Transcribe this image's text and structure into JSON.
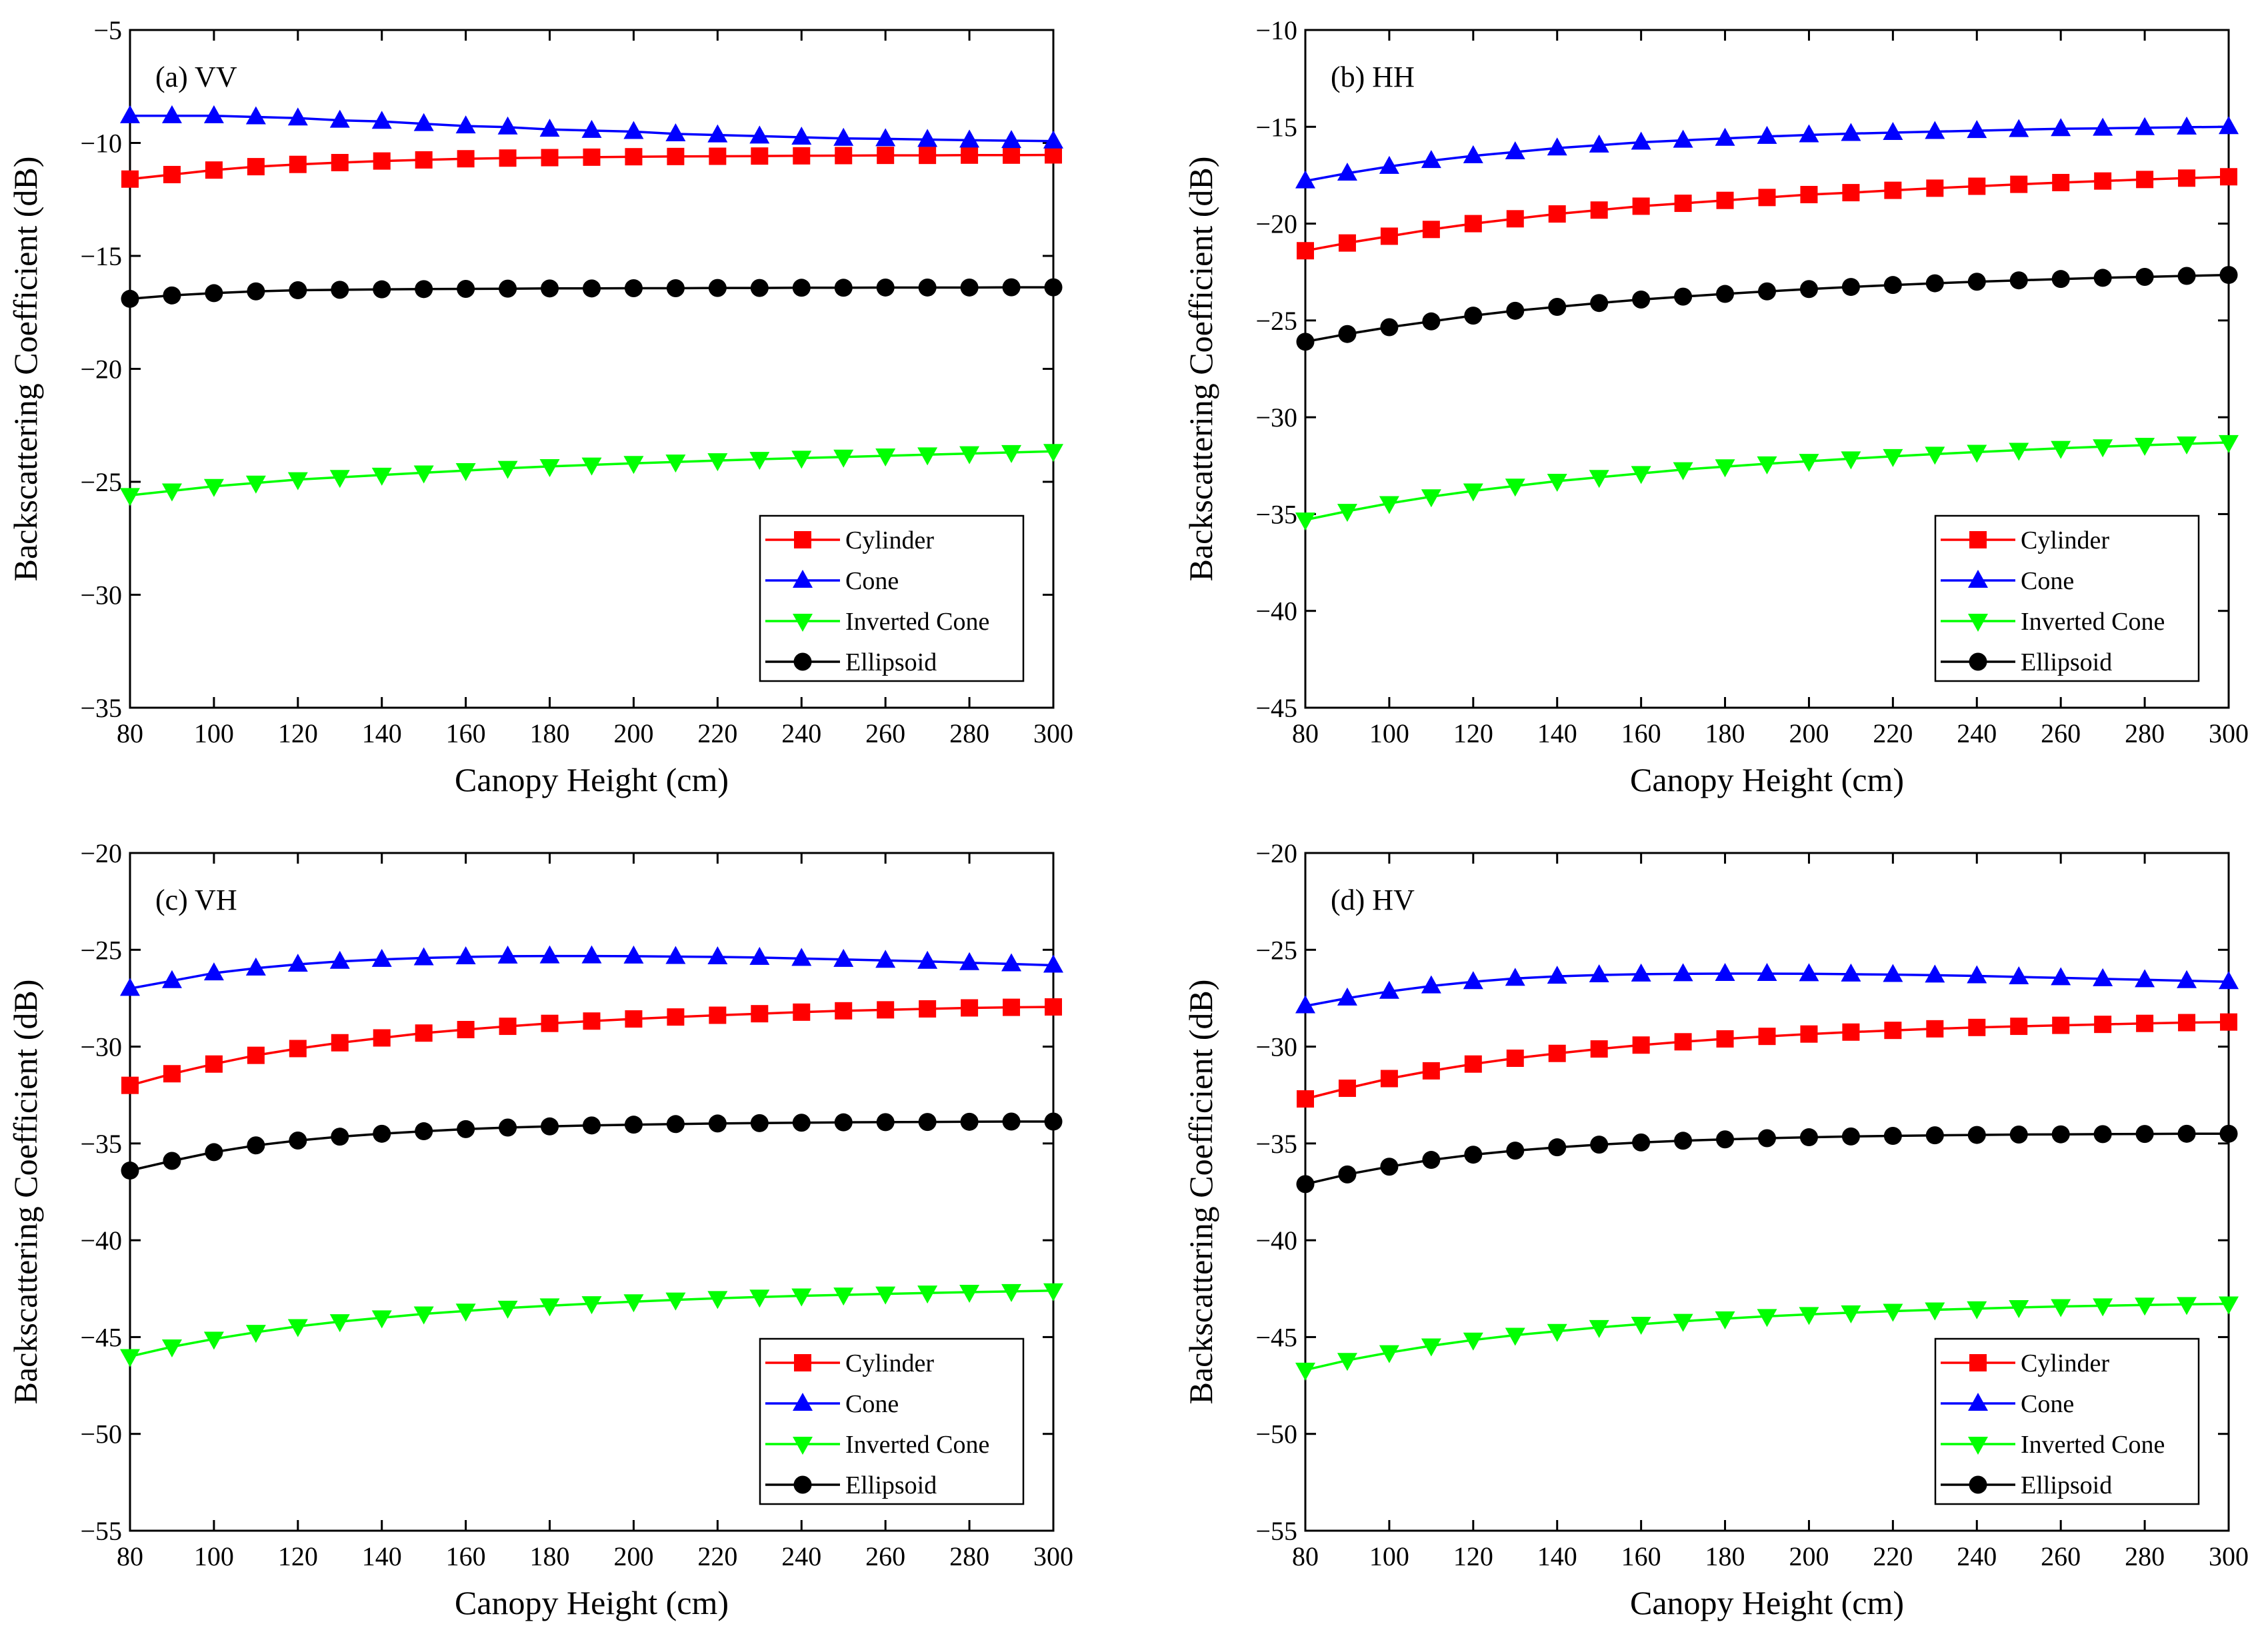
{
  "figure": {
    "xlabel": "Canopy Height (cm)",
    "ylabel": "Backscattering Coefficient (dB)"
  },
  "chart_data": [
    {
      "type": "line",
      "panel_label": "(a) VV",
      "xlabel": "Canopy Height (cm)",
      "ylabel": "Backscattering Coefficient (dB)",
      "xlim": [
        80,
        300
      ],
      "ylim": [
        -35,
        -5
      ],
      "xticks": [
        "80",
        "100",
        "120",
        "140",
        "160",
        "180",
        "200",
        "220",
        "240",
        "260",
        "280",
        "300"
      ],
      "yticks": [
        "−35",
        "−30",
        "−25",
        "−20",
        "−15",
        "−10",
        "−5"
      ],
      "grid": false,
      "legend_position": "bottom-right",
      "x": [
        80,
        90,
        100,
        110,
        120,
        130,
        140,
        150,
        160,
        170,
        180,
        190,
        200,
        210,
        220,
        230,
        240,
        250,
        260,
        270,
        280,
        290,
        300
      ],
      "series": [
        {
          "name": "Cylinder",
          "color": "#ff0000",
          "marker": "square",
          "values": [
            -11.6,
            -11.4,
            -11.2,
            -11.05,
            -10.95,
            -10.87,
            -10.8,
            -10.75,
            -10.7,
            -10.67,
            -10.65,
            -10.63,
            -10.61,
            -10.6,
            -10.59,
            -10.58,
            -10.57,
            -10.56,
            -10.55,
            -10.55,
            -10.54,
            -10.54,
            -10.53
          ]
        },
        {
          "name": "Cone",
          "color": "#0000ff",
          "marker": "triangle-up",
          "values": [
            -8.8,
            -8.8,
            -8.8,
            -8.85,
            -8.9,
            -9.0,
            -9.05,
            -9.15,
            -9.25,
            -9.3,
            -9.4,
            -9.45,
            -9.5,
            -9.6,
            -9.65,
            -9.7,
            -9.75,
            -9.8,
            -9.82,
            -9.85,
            -9.88,
            -9.9,
            -9.92
          ]
        },
        {
          "name": "Inverted Cone",
          "color": "#00ff00",
          "marker": "triangle-down",
          "values": [
            -25.6,
            -25.4,
            -25.2,
            -25.05,
            -24.9,
            -24.8,
            -24.7,
            -24.6,
            -24.5,
            -24.4,
            -24.32,
            -24.25,
            -24.18,
            -24.12,
            -24.06,
            -24.0,
            -23.95,
            -23.9,
            -23.85,
            -23.8,
            -23.75,
            -23.7,
            -23.65
          ]
        },
        {
          "name": "Ellipsoid",
          "color": "#000000",
          "marker": "circle",
          "values": [
            -16.9,
            -16.75,
            -16.65,
            -16.57,
            -16.52,
            -16.5,
            -16.48,
            -16.47,
            -16.46,
            -16.45,
            -16.44,
            -16.44,
            -16.43,
            -16.43,
            -16.42,
            -16.42,
            -16.41,
            -16.41,
            -16.4,
            -16.4,
            -16.4,
            -16.39,
            -16.39
          ]
        }
      ]
    },
    {
      "type": "line",
      "panel_label": "(b) HH",
      "xlabel": "Canopy Height (cm)",
      "ylabel": "Backscattering Coefficient (dB)",
      "xlim": [
        80,
        300
      ],
      "ylim": [
        -45,
        -10
      ],
      "xticks": [
        "80",
        "100",
        "120",
        "140",
        "160",
        "180",
        "200",
        "220",
        "240",
        "260",
        "280",
        "300"
      ],
      "yticks": [
        "−45",
        "−40",
        "−35",
        "−30",
        "−25",
        "−20",
        "−15",
        "−10"
      ],
      "grid": false,
      "legend_position": "bottom-right",
      "x": [
        80,
        90,
        100,
        110,
        120,
        130,
        140,
        150,
        160,
        170,
        180,
        190,
        200,
        210,
        220,
        230,
        240,
        250,
        260,
        270,
        280,
        290,
        300
      ],
      "series": [
        {
          "name": "Cylinder",
          "color": "#ff0000",
          "marker": "square",
          "values": [
            -21.4,
            -21.0,
            -20.65,
            -20.3,
            -20.0,
            -19.75,
            -19.5,
            -19.3,
            -19.1,
            -18.95,
            -18.8,
            -18.65,
            -18.5,
            -18.4,
            -18.28,
            -18.17,
            -18.07,
            -17.97,
            -17.88,
            -17.8,
            -17.72,
            -17.65,
            -17.58
          ]
        },
        {
          "name": "Cone",
          "color": "#0000ff",
          "marker": "triangle-up",
          "values": [
            -17.8,
            -17.4,
            -17.05,
            -16.75,
            -16.5,
            -16.3,
            -16.1,
            -15.95,
            -15.8,
            -15.7,
            -15.6,
            -15.5,
            -15.42,
            -15.35,
            -15.3,
            -15.25,
            -15.2,
            -15.15,
            -15.1,
            -15.08,
            -15.05,
            -15.02,
            -15.0
          ]
        },
        {
          "name": "Inverted Cone",
          "color": "#00ff00",
          "marker": "triangle-down",
          "values": [
            -35.3,
            -34.85,
            -34.45,
            -34.1,
            -33.8,
            -33.55,
            -33.3,
            -33.1,
            -32.9,
            -32.7,
            -32.55,
            -32.4,
            -32.27,
            -32.14,
            -32.02,
            -31.9,
            -31.8,
            -31.7,
            -31.6,
            -31.52,
            -31.44,
            -31.37,
            -31.3
          ]
        },
        {
          "name": "Ellipsoid",
          "color": "#000000",
          "marker": "circle",
          "values": [
            -26.1,
            -25.7,
            -25.35,
            -25.05,
            -24.75,
            -24.5,
            -24.3,
            -24.1,
            -23.92,
            -23.77,
            -23.63,
            -23.5,
            -23.38,
            -23.27,
            -23.17,
            -23.08,
            -23.0,
            -22.93,
            -22.86,
            -22.8,
            -22.75,
            -22.7,
            -22.65
          ]
        }
      ]
    },
    {
      "type": "line",
      "panel_label": "(c) VH",
      "xlabel": "Canopy Height (cm)",
      "ylabel": "Backscattering Coefficient (dB)",
      "xlim": [
        80,
        300
      ],
      "ylim": [
        -55,
        -20
      ],
      "xticks": [
        "80",
        "100",
        "120",
        "140",
        "160",
        "180",
        "200",
        "220",
        "240",
        "260",
        "280",
        "300"
      ],
      "yticks": [
        "−55",
        "−50",
        "−45",
        "−40",
        "−35",
        "−30",
        "−25",
        "−20"
      ],
      "grid": false,
      "legend_position": "bottom-right",
      "x": [
        80,
        90,
        100,
        110,
        120,
        130,
        140,
        150,
        160,
        170,
        180,
        190,
        200,
        210,
        220,
        230,
        240,
        250,
        260,
        270,
        280,
        290,
        300
      ],
      "series": [
        {
          "name": "Cylinder",
          "color": "#ff0000",
          "marker": "square",
          "values": [
            -32.0,
            -31.4,
            -30.9,
            -30.45,
            -30.1,
            -29.8,
            -29.55,
            -29.3,
            -29.12,
            -28.95,
            -28.8,
            -28.68,
            -28.57,
            -28.47,
            -28.38,
            -28.3,
            -28.22,
            -28.15,
            -28.1,
            -28.05,
            -28.0,
            -27.97,
            -27.95
          ]
        },
        {
          "name": "Cone",
          "color": "#0000ff",
          "marker": "triangle-up",
          "values": [
            -27.0,
            -26.6,
            -26.2,
            -25.95,
            -25.75,
            -25.6,
            -25.5,
            -25.42,
            -25.37,
            -25.33,
            -25.32,
            -25.32,
            -25.33,
            -25.35,
            -25.37,
            -25.4,
            -25.45,
            -25.5,
            -25.55,
            -25.6,
            -25.67,
            -25.73,
            -25.8
          ]
        },
        {
          "name": "Inverted Cone",
          "color": "#00ff00",
          "marker": "triangle-down",
          "values": [
            -46.0,
            -45.5,
            -45.1,
            -44.75,
            -44.45,
            -44.2,
            -44.0,
            -43.8,
            -43.65,
            -43.5,
            -43.38,
            -43.27,
            -43.17,
            -43.08,
            -43.0,
            -42.93,
            -42.87,
            -42.82,
            -42.77,
            -42.72,
            -42.68,
            -42.64,
            -42.6
          ]
        },
        {
          "name": "Ellipsoid",
          "color": "#000000",
          "marker": "circle",
          "values": [
            -36.4,
            -35.9,
            -35.45,
            -35.1,
            -34.85,
            -34.65,
            -34.5,
            -34.37,
            -34.26,
            -34.18,
            -34.12,
            -34.07,
            -34.03,
            -34.0,
            -33.97,
            -33.95,
            -33.93,
            -33.91,
            -33.9,
            -33.89,
            -33.88,
            -33.87,
            -33.87
          ]
        }
      ]
    },
    {
      "type": "line",
      "panel_label": "(d) HV",
      "xlabel": "Canopy Height (cm)",
      "ylabel": "Backscattering Coefficient (dB)",
      "xlim": [
        80,
        300
      ],
      "ylim": [
        -55,
        -20
      ],
      "xticks": [
        "80",
        "100",
        "120",
        "140",
        "160",
        "180",
        "200",
        "220",
        "240",
        "260",
        "280",
        "300"
      ],
      "yticks": [
        "−55",
        "−50",
        "−45",
        "−40",
        "−35",
        "−30",
        "−25",
        "−20"
      ],
      "grid": false,
      "legend_position": "bottom-right",
      "x": [
        80,
        90,
        100,
        110,
        120,
        130,
        140,
        150,
        160,
        170,
        180,
        190,
        200,
        210,
        220,
        230,
        240,
        250,
        260,
        270,
        280,
        290,
        300
      ],
      "series": [
        {
          "name": "Cylinder",
          "color": "#ff0000",
          "marker": "square",
          "values": [
            -32.7,
            -32.15,
            -31.65,
            -31.25,
            -30.9,
            -30.6,
            -30.35,
            -30.12,
            -29.92,
            -29.75,
            -29.6,
            -29.47,
            -29.35,
            -29.25,
            -29.16,
            -29.08,
            -29.01,
            -28.95,
            -28.9,
            -28.85,
            -28.8,
            -28.76,
            -28.73
          ]
        },
        {
          "name": "Cone",
          "color": "#0000ff",
          "marker": "triangle-up",
          "values": [
            -27.9,
            -27.5,
            -27.15,
            -26.87,
            -26.65,
            -26.48,
            -26.37,
            -26.3,
            -26.26,
            -26.24,
            -26.23,
            -26.23,
            -26.24,
            -26.26,
            -26.28,
            -26.31,
            -26.35,
            -26.4,
            -26.45,
            -26.5,
            -26.55,
            -26.6,
            -26.65
          ]
        },
        {
          "name": "Inverted Cone",
          "color": "#00ff00",
          "marker": "triangle-down",
          "values": [
            -46.7,
            -46.2,
            -45.8,
            -45.45,
            -45.15,
            -44.9,
            -44.7,
            -44.5,
            -44.33,
            -44.18,
            -44.05,
            -43.93,
            -43.83,
            -43.74,
            -43.66,
            -43.59,
            -43.53,
            -43.47,
            -43.42,
            -43.38,
            -43.34,
            -43.31,
            -43.28
          ]
        },
        {
          "name": "Ellipsoid",
          "color": "#000000",
          "marker": "circle",
          "values": [
            -37.1,
            -36.6,
            -36.2,
            -35.85,
            -35.58,
            -35.37,
            -35.2,
            -35.06,
            -34.95,
            -34.86,
            -34.79,
            -34.73,
            -34.68,
            -34.64,
            -34.61,
            -34.58,
            -34.56,
            -34.54,
            -34.53,
            -34.52,
            -34.51,
            -34.5,
            -34.5
          ]
        }
      ]
    }
  ]
}
